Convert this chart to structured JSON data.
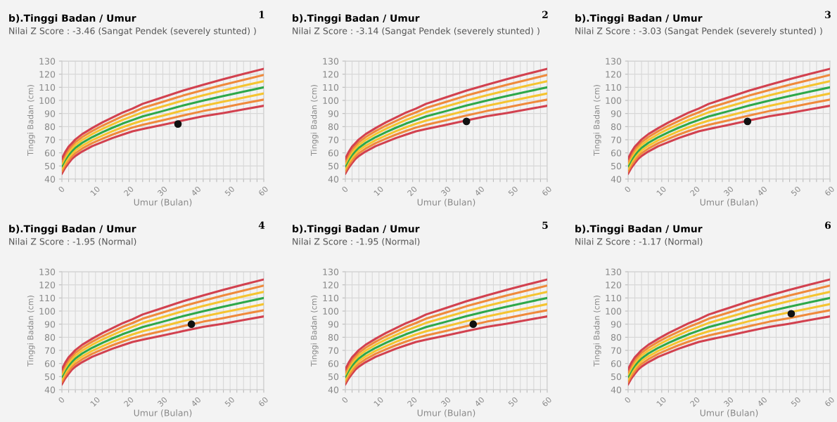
{
  "chart_data": [
    {
      "type": "line",
      "title": "b).Tinggi Badan / Umur",
      "subtitle": "Nilai Z Score : -3.46 (Sangat Pendek (severely stunted) )",
      "xlabel": "Umur (Bulan)",
      "ylabel": "Tinggi Badan (cm)",
      "annotations": [
        "1"
      ],
      "x": [
        0,
        1,
        2,
        3,
        4,
        6,
        9,
        12,
        15,
        18,
        21,
        24,
        30,
        36,
        42,
        48,
        54,
        60
      ],
      "series": [
        {
          "color": "#d2414f",
          "values": [
            44.2,
            48.7,
            52.1,
            55.4,
            57.6,
            61.0,
            65.1,
            68.2,
            71.3,
            73.9,
            76.4,
            78.2,
            81.4,
            84.7,
            87.9,
            90.4,
            93.2,
            95.9
          ]
        },
        {
          "color": "#ef8a3c",
          "values": [
            46.1,
            50.7,
            54.2,
            57.4,
            59.7,
            63.2,
            67.4,
            70.7,
            73.9,
            76.7,
            79.3,
            81.4,
            84.9,
            88.5,
            91.9,
            94.7,
            97.7,
            100.6
          ]
        },
        {
          "color": "#f5c431",
          "values": [
            48.0,
            52.7,
            56.3,
            59.4,
            61.8,
            65.4,
            69.7,
            73.2,
            76.5,
            79.5,
            82.2,
            84.6,
            88.4,
            92.3,
            95.9,
            99.0,
            102.2,
            105.3
          ]
        },
        {
          "color": "#2ea84a",
          "values": [
            49.9,
            54.7,
            58.4,
            61.4,
            63.9,
            67.6,
            72.0,
            75.7,
            79.1,
            82.3,
            85.1,
            87.8,
            91.9,
            96.1,
            99.9,
            103.3,
            106.7,
            110.0
          ]
        },
        {
          "color": "#f5c431",
          "values": [
            51.8,
            56.7,
            60.5,
            63.4,
            66.0,
            69.8,
            74.3,
            78.2,
            81.7,
            85.1,
            88.0,
            91.0,
            95.4,
            99.9,
            103.9,
            107.6,
            111.2,
            114.7
          ]
        },
        {
          "color": "#ef8a3c",
          "values": [
            53.7,
            58.7,
            62.6,
            65.4,
            68.1,
            72.0,
            76.6,
            80.7,
            84.3,
            87.9,
            90.9,
            94.2,
            98.9,
            103.7,
            107.9,
            111.9,
            115.7,
            119.4
          ]
        },
        {
          "color": "#d2414f",
          "values": [
            55.6,
            60.7,
            64.7,
            67.4,
            70.2,
            74.2,
            78.9,
            83.2,
            86.9,
            90.7,
            93.8,
            97.4,
            102.4,
            107.5,
            111.9,
            116.2,
            120.2,
            124.1
          ]
        },
        {
          "type": "scatter",
          "marker": "circle",
          "color": "#111111",
          "x": [
            34.5
          ],
          "values": [
            82
          ]
        }
      ],
      "xlim": [
        0,
        60
      ],
      "ylim": [
        40,
        130
      ],
      "yticks": [
        40,
        50,
        60,
        70,
        80,
        90,
        100,
        110,
        120,
        130
      ],
      "xticks": [
        0,
        {
          "value": 2,
          "label": null
        },
        {
          "value": 4,
          "label": null
        },
        {
          "value": 6,
          "label": null
        },
        {
          "value": 8,
          "label": null
        },
        10,
        {
          "value": 12,
          "label": null
        },
        {
          "value": 14,
          "label": null
        },
        {
          "value": 16,
          "label": null
        },
        {
          "value": 18,
          "label": null
        },
        20,
        {
          "value": 22,
          "label": null
        },
        {
          "value": 24,
          "label": null
        },
        {
          "value": 26,
          "label": null
        },
        {
          "value": 28,
          "label": null
        },
        30,
        {
          "value": 32,
          "label": null
        },
        {
          "value": 34,
          "label": null
        },
        {
          "value": 36,
          "label": null
        },
        {
          "value": 38,
          "label": null
        },
        40,
        {
          "value": 42,
          "label": null
        },
        {
          "value": 44,
          "label": null
        },
        {
          "value": 46,
          "label": null
        },
        {
          "value": 48,
          "label": null
        },
        50,
        {
          "value": 52,
          "label": null
        },
        {
          "value": 54,
          "label": null
        },
        {
          "value": 56,
          "label": null
        },
        {
          "value": 58,
          "label": null
        },
        60
      ],
      "grid": true,
      "marker": "none",
      "line_style": "solid"
    },
    {
      "type": "line",
      "title": "b).Tinggi Badan / Umur",
      "subtitle": "Nilai Z Score : -3.14 (Sangat Pendek (severely stunted) )",
      "xlabel": "Umur (Bulan)",
      "ylabel": "Tinggi Badan (cm)",
      "annotations": [
        "2"
      ],
      "x": [
        0,
        1,
        2,
        3,
        4,
        6,
        9,
        12,
        15,
        18,
        21,
        24,
        30,
        36,
        42,
        48,
        54,
        60
      ],
      "series": [
        {
          "color": "#d2414f",
          "values": [
            44.2,
            48.7,
            52.1,
            55.4,
            57.6,
            61.0,
            65.1,
            68.2,
            71.3,
            73.9,
            76.4,
            78.2,
            81.4,
            84.7,
            87.9,
            90.4,
            93.2,
            95.9
          ]
        },
        {
          "color": "#ef8a3c",
          "values": [
            46.1,
            50.7,
            54.2,
            57.4,
            59.7,
            63.2,
            67.4,
            70.7,
            73.9,
            76.7,
            79.3,
            81.4,
            84.9,
            88.5,
            91.9,
            94.7,
            97.7,
            100.6
          ]
        },
        {
          "color": "#f5c431",
          "values": [
            48.0,
            52.7,
            56.3,
            59.4,
            61.8,
            65.4,
            69.7,
            73.2,
            76.5,
            79.5,
            82.2,
            84.6,
            88.4,
            92.3,
            95.9,
            99.0,
            102.2,
            105.3
          ]
        },
        {
          "color": "#2ea84a",
          "values": [
            49.9,
            54.7,
            58.4,
            61.4,
            63.9,
            67.6,
            72.0,
            75.7,
            79.1,
            82.3,
            85.1,
            87.8,
            91.9,
            96.1,
            99.9,
            103.3,
            106.7,
            110.0
          ]
        },
        {
          "color": "#f5c431",
          "values": [
            51.8,
            56.7,
            60.5,
            63.4,
            66.0,
            69.8,
            74.3,
            78.2,
            81.7,
            85.1,
            88.0,
            91.0,
            95.4,
            99.9,
            103.9,
            107.6,
            111.2,
            114.7
          ]
        },
        {
          "color": "#ef8a3c",
          "values": [
            53.7,
            58.7,
            62.6,
            65.4,
            68.1,
            72.0,
            76.6,
            80.7,
            84.3,
            87.9,
            90.9,
            94.2,
            98.9,
            103.7,
            107.9,
            111.9,
            115.7,
            119.4
          ]
        },
        {
          "color": "#d2414f",
          "values": [
            55.6,
            60.7,
            64.7,
            67.4,
            70.2,
            74.2,
            78.9,
            83.2,
            86.9,
            90.7,
            93.8,
            97.4,
            102.4,
            107.5,
            111.9,
            116.2,
            120.2,
            124.1
          ]
        },
        {
          "type": "scatter",
          "marker": "circle",
          "color": "#111111",
          "x": [
            36
          ],
          "values": [
            84
          ]
        }
      ],
      "xlim": [
        0,
        60
      ],
      "ylim": [
        40,
        130
      ],
      "yticks": [
        40,
        50,
        60,
        70,
        80,
        90,
        100,
        110,
        120,
        130
      ],
      "xticks": [
        0,
        {
          "value": 2,
          "label": null
        },
        {
          "value": 4,
          "label": null
        },
        {
          "value": 6,
          "label": null
        },
        {
          "value": 8,
          "label": null
        },
        10,
        {
          "value": 12,
          "label": null
        },
        {
          "value": 14,
          "label": null
        },
        {
          "value": 16,
          "label": null
        },
        {
          "value": 18,
          "label": null
        },
        20,
        {
          "value": 22,
          "label": null
        },
        {
          "value": 24,
          "label": null
        },
        {
          "value": 26,
          "label": null
        },
        {
          "value": 28,
          "label": null
        },
        30,
        {
          "value": 32,
          "label": null
        },
        {
          "value": 34,
          "label": null
        },
        {
          "value": 36,
          "label": null
        },
        {
          "value": 38,
          "label": null
        },
        40,
        {
          "value": 42,
          "label": null
        },
        {
          "value": 44,
          "label": null
        },
        {
          "value": 46,
          "label": null
        },
        {
          "value": 48,
          "label": null
        },
        50,
        {
          "value": 52,
          "label": null
        },
        {
          "value": 54,
          "label": null
        },
        {
          "value": 56,
          "label": null
        },
        {
          "value": 58,
          "label": null
        },
        60
      ],
      "grid": true,
      "marker": "none",
      "line_style": "solid"
    },
    {
      "type": "line",
      "title": "b).Tinggi Badan / Umur",
      "subtitle": "Nilai Z Score : -3.03 (Sangat Pendek (severely stunted) )",
      "xlabel": "Umur (Bulan)",
      "ylabel": "Tinggi Badan (cm)",
      "annotations": [
        "3"
      ],
      "x": [
        0,
        1,
        2,
        3,
        4,
        6,
        9,
        12,
        15,
        18,
        21,
        24,
        30,
        36,
        42,
        48,
        54,
        60
      ],
      "series": [
        {
          "color": "#d2414f",
          "values": [
            44.2,
            48.7,
            52.1,
            55.4,
            57.6,
            61.0,
            65.1,
            68.2,
            71.3,
            73.9,
            76.4,
            78.2,
            81.4,
            84.7,
            87.9,
            90.4,
            93.2,
            95.9
          ]
        },
        {
          "color": "#ef8a3c",
          "values": [
            46.1,
            50.7,
            54.2,
            57.4,
            59.7,
            63.2,
            67.4,
            70.7,
            73.9,
            76.7,
            79.3,
            81.4,
            84.9,
            88.5,
            91.9,
            94.7,
            97.7,
            100.6
          ]
        },
        {
          "color": "#f5c431",
          "values": [
            48.0,
            52.7,
            56.3,
            59.4,
            61.8,
            65.4,
            69.7,
            73.2,
            76.5,
            79.5,
            82.2,
            84.6,
            88.4,
            92.3,
            95.9,
            99.0,
            102.2,
            105.3
          ]
        },
        {
          "color": "#2ea84a",
          "values": [
            49.9,
            54.7,
            58.4,
            61.4,
            63.9,
            67.6,
            72.0,
            75.7,
            79.1,
            82.3,
            85.1,
            87.8,
            91.9,
            96.1,
            99.9,
            103.3,
            106.7,
            110.0
          ]
        },
        {
          "color": "#f5c431",
          "values": [
            51.8,
            56.7,
            60.5,
            63.4,
            66.0,
            69.8,
            74.3,
            78.2,
            81.7,
            85.1,
            88.0,
            91.0,
            95.4,
            99.9,
            103.9,
            107.6,
            111.2,
            114.7
          ]
        },
        {
          "color": "#ef8a3c",
          "values": [
            53.7,
            58.7,
            62.6,
            65.4,
            68.1,
            72.0,
            76.6,
            80.7,
            84.3,
            87.9,
            90.9,
            94.2,
            98.9,
            103.7,
            107.9,
            111.9,
            115.7,
            119.4
          ]
        },
        {
          "color": "#d2414f",
          "values": [
            55.6,
            60.7,
            64.7,
            67.4,
            70.2,
            74.2,
            78.9,
            83.2,
            86.9,
            90.7,
            93.8,
            97.4,
            102.4,
            107.5,
            111.9,
            116.2,
            120.2,
            124.1
          ]
        },
        {
          "type": "scatter",
          "marker": "circle",
          "color": "#111111",
          "x": [
            35.5
          ],
          "values": [
            84
          ]
        }
      ],
      "xlim": [
        0,
        60
      ],
      "ylim": [
        40,
        130
      ],
      "yticks": [
        40,
        50,
        60,
        70,
        80,
        90,
        100,
        110,
        120,
        130
      ],
      "xticks": [
        0,
        {
          "value": 2,
          "label": null
        },
        {
          "value": 4,
          "label": null
        },
        {
          "value": 6,
          "label": null
        },
        {
          "value": 8,
          "label": null
        },
        10,
        {
          "value": 12,
          "label": null
        },
        {
          "value": 14,
          "label": null
        },
        {
          "value": 16,
          "label": null
        },
        {
          "value": 18,
          "label": null
        },
        20,
        {
          "value": 22,
          "label": null
        },
        {
          "value": 24,
          "label": null
        },
        {
          "value": 26,
          "label": null
        },
        {
          "value": 28,
          "label": null
        },
        30,
        {
          "value": 32,
          "label": null
        },
        {
          "value": 34,
          "label": null
        },
        {
          "value": 36,
          "label": null
        },
        {
          "value": 38,
          "label": null
        },
        40,
        {
          "value": 42,
          "label": null
        },
        {
          "value": 44,
          "label": null
        },
        {
          "value": 46,
          "label": null
        },
        {
          "value": 48,
          "label": null
        },
        50,
        {
          "value": 52,
          "label": null
        },
        {
          "value": 54,
          "label": null
        },
        {
          "value": 56,
          "label": null
        },
        {
          "value": 58,
          "label": null
        },
        60
      ],
      "grid": true,
      "marker": "none",
      "line_style": "solid"
    },
    {
      "type": "line",
      "title": "b).Tinggi Badan / Umur",
      "subtitle": "Nilai Z Score : -1.95 (Normal)",
      "xlabel": "Umur (Bulan)",
      "ylabel": "Tinggi Badan (cm)",
      "annotations": [
        "4"
      ],
      "x": [
        0,
        1,
        2,
        3,
        4,
        6,
        9,
        12,
        15,
        18,
        21,
        24,
        30,
        36,
        42,
        48,
        54,
        60
      ],
      "series": [
        {
          "color": "#d2414f",
          "values": [
            44.2,
            48.7,
            52.1,
            55.4,
            57.6,
            61.0,
            65.1,
            68.2,
            71.3,
            73.9,
            76.4,
            78.2,
            81.4,
            84.7,
            87.9,
            90.4,
            93.2,
            95.9
          ]
        },
        {
          "color": "#ef8a3c",
          "values": [
            46.1,
            50.7,
            54.2,
            57.4,
            59.7,
            63.2,
            67.4,
            70.7,
            73.9,
            76.7,
            79.3,
            81.4,
            84.9,
            88.5,
            91.9,
            94.7,
            97.7,
            100.6
          ]
        },
        {
          "color": "#f5c431",
          "values": [
            48.0,
            52.7,
            56.3,
            59.4,
            61.8,
            65.4,
            69.7,
            73.2,
            76.5,
            79.5,
            82.2,
            84.6,
            88.4,
            92.3,
            95.9,
            99.0,
            102.2,
            105.3
          ]
        },
        {
          "color": "#2ea84a",
          "values": [
            49.9,
            54.7,
            58.4,
            61.4,
            63.9,
            67.6,
            72.0,
            75.7,
            79.1,
            82.3,
            85.1,
            87.8,
            91.9,
            96.1,
            99.9,
            103.3,
            106.7,
            110.0
          ]
        },
        {
          "color": "#f5c431",
          "values": [
            51.8,
            56.7,
            60.5,
            63.4,
            66.0,
            69.8,
            74.3,
            78.2,
            81.7,
            85.1,
            88.0,
            91.0,
            95.4,
            99.9,
            103.9,
            107.6,
            111.2,
            114.7
          ]
        },
        {
          "color": "#ef8a3c",
          "values": [
            53.7,
            58.7,
            62.6,
            65.4,
            68.1,
            72.0,
            76.6,
            80.7,
            84.3,
            87.9,
            90.9,
            94.2,
            98.9,
            103.7,
            107.9,
            111.9,
            115.7,
            119.4
          ]
        },
        {
          "color": "#d2414f",
          "values": [
            55.6,
            60.7,
            64.7,
            67.4,
            70.2,
            74.2,
            78.9,
            83.2,
            86.9,
            90.7,
            93.8,
            97.4,
            102.4,
            107.5,
            111.9,
            116.2,
            120.2,
            124.1
          ]
        },
        {
          "type": "scatter",
          "marker": "circle",
          "color": "#111111",
          "x": [
            38.5
          ],
          "values": [
            90
          ]
        }
      ],
      "xlim": [
        0,
        60
      ],
      "ylim": [
        40,
        130
      ],
      "yticks": [
        40,
        50,
        60,
        70,
        80,
        90,
        100,
        110,
        120,
        130
      ],
      "xticks": [
        0,
        {
          "value": 2,
          "label": null
        },
        {
          "value": 4,
          "label": null
        },
        {
          "value": 6,
          "label": null
        },
        {
          "value": 8,
          "label": null
        },
        10,
        {
          "value": 12,
          "label": null
        },
        {
          "value": 14,
          "label": null
        },
        {
          "value": 16,
          "label": null
        },
        {
          "value": 18,
          "label": null
        },
        20,
        {
          "value": 22,
          "label": null
        },
        {
          "value": 24,
          "label": null
        },
        {
          "value": 26,
          "label": null
        },
        {
          "value": 28,
          "label": null
        },
        30,
        {
          "value": 32,
          "label": null
        },
        {
          "value": 34,
          "label": null
        },
        {
          "value": 36,
          "label": null
        },
        {
          "value": 38,
          "label": null
        },
        40,
        {
          "value": 42,
          "label": null
        },
        {
          "value": 44,
          "label": null
        },
        {
          "value": 46,
          "label": null
        },
        {
          "value": 48,
          "label": null
        },
        50,
        {
          "value": 52,
          "label": null
        },
        {
          "value": 54,
          "label": null
        },
        {
          "value": 56,
          "label": null
        },
        {
          "value": 58,
          "label": null
        },
        60
      ],
      "grid": true,
      "marker": "none",
      "line_style": "solid"
    },
    {
      "type": "line",
      "title": "b).Tinggi Badan / Umur",
      "subtitle": "Nilai Z Score : -1.95 (Normal)",
      "xlabel": "Umur (Bulan)",
      "ylabel": "Tinggi Badan (cm)",
      "annotations": [
        "5"
      ],
      "x": [
        0,
        1,
        2,
        3,
        4,
        6,
        9,
        12,
        15,
        18,
        21,
        24,
        30,
        36,
        42,
        48,
        54,
        60
      ],
      "series": [
        {
          "color": "#d2414f",
          "values": [
            44.2,
            48.7,
            52.1,
            55.4,
            57.6,
            61.0,
            65.1,
            68.2,
            71.3,
            73.9,
            76.4,
            78.2,
            81.4,
            84.7,
            87.9,
            90.4,
            93.2,
            95.9
          ]
        },
        {
          "color": "#ef8a3c",
          "values": [
            46.1,
            50.7,
            54.2,
            57.4,
            59.7,
            63.2,
            67.4,
            70.7,
            73.9,
            76.7,
            79.3,
            81.4,
            84.9,
            88.5,
            91.9,
            94.7,
            97.7,
            100.6
          ]
        },
        {
          "color": "#f5c431",
          "values": [
            48.0,
            52.7,
            56.3,
            59.4,
            61.8,
            65.4,
            69.7,
            73.2,
            76.5,
            79.5,
            82.2,
            84.6,
            88.4,
            92.3,
            95.9,
            99.0,
            102.2,
            105.3
          ]
        },
        {
          "color": "#2ea84a",
          "values": [
            49.9,
            54.7,
            58.4,
            61.4,
            63.9,
            67.6,
            72.0,
            75.7,
            79.1,
            82.3,
            85.1,
            87.8,
            91.9,
            96.1,
            99.9,
            103.3,
            106.7,
            110.0
          ]
        },
        {
          "color": "#f5c431",
          "values": [
            51.8,
            56.7,
            60.5,
            63.4,
            66.0,
            69.8,
            74.3,
            78.2,
            81.7,
            85.1,
            88.0,
            91.0,
            95.4,
            99.9,
            103.9,
            107.6,
            111.2,
            114.7
          ]
        },
        {
          "color": "#ef8a3c",
          "values": [
            53.7,
            58.7,
            62.6,
            65.4,
            68.1,
            72.0,
            76.6,
            80.7,
            84.3,
            87.9,
            90.9,
            94.2,
            98.9,
            103.7,
            107.9,
            111.9,
            115.7,
            119.4
          ]
        },
        {
          "color": "#d2414f",
          "values": [
            55.6,
            60.7,
            64.7,
            67.4,
            70.2,
            74.2,
            78.9,
            83.2,
            86.9,
            90.7,
            93.8,
            97.4,
            102.4,
            107.5,
            111.9,
            116.2,
            120.2,
            124.1
          ]
        },
        {
          "type": "scatter",
          "marker": "circle",
          "color": "#111111",
          "x": [
            38
          ],
          "values": [
            90
          ]
        }
      ],
      "xlim": [
        0,
        60
      ],
      "ylim": [
        40,
        130
      ],
      "yticks": [
        40,
        50,
        60,
        70,
        80,
        90,
        100,
        110,
        120,
        130
      ],
      "xticks": [
        0,
        {
          "value": 2,
          "label": null
        },
        {
          "value": 4,
          "label": null
        },
        {
          "value": 6,
          "label": null
        },
        {
          "value": 8,
          "label": null
        },
        10,
        {
          "value": 12,
          "label": null
        },
        {
          "value": 14,
          "label": null
        },
        {
          "value": 16,
          "label": null
        },
        {
          "value": 18,
          "label": null
        },
        20,
        {
          "value": 22,
          "label": null
        },
        {
          "value": 24,
          "label": null
        },
        {
          "value": 26,
          "label": null
        },
        {
          "value": 28,
          "label": null
        },
        30,
        {
          "value": 32,
          "label": null
        },
        {
          "value": 34,
          "label": null
        },
        {
          "value": 36,
          "label": null
        },
        {
          "value": 38,
          "label": null
        },
        40,
        {
          "value": 42,
          "label": null
        },
        {
          "value": 44,
          "label": null
        },
        {
          "value": 46,
          "label": null
        },
        {
          "value": 48,
          "label": null
        },
        50,
        {
          "value": 52,
          "label": null
        },
        {
          "value": 54,
          "label": null
        },
        {
          "value": 56,
          "label": null
        },
        {
          "value": 58,
          "label": null
        },
        60
      ],
      "grid": true,
      "marker": "none",
      "line_style": "solid"
    },
    {
      "type": "line",
      "title": "b).Tinggi Badan / Umur",
      "subtitle": "Nilai Z Score : -1.17 (Normal)",
      "xlabel": "Umur (Bulan)",
      "ylabel": "Tinggi Badan (cm)",
      "annotations": [
        "6"
      ],
      "x": [
        0,
        1,
        2,
        3,
        4,
        6,
        9,
        12,
        15,
        18,
        21,
        24,
        30,
        36,
        42,
        48,
        54,
        60
      ],
      "series": [
        {
          "color": "#d2414f",
          "values": [
            44.2,
            48.7,
            52.1,
            55.4,
            57.6,
            61.0,
            65.1,
            68.2,
            71.3,
            73.9,
            76.4,
            78.2,
            81.4,
            84.7,
            87.9,
            90.4,
            93.2,
            95.9
          ]
        },
        {
          "color": "#ef8a3c",
          "values": [
            46.1,
            50.7,
            54.2,
            57.4,
            59.7,
            63.2,
            67.4,
            70.7,
            73.9,
            76.7,
            79.3,
            81.4,
            84.9,
            88.5,
            91.9,
            94.7,
            97.7,
            100.6
          ]
        },
        {
          "color": "#f5c431",
          "values": [
            48.0,
            52.7,
            56.3,
            59.4,
            61.8,
            65.4,
            69.7,
            73.2,
            76.5,
            79.5,
            82.2,
            84.6,
            88.4,
            92.3,
            95.9,
            99.0,
            102.2,
            105.3
          ]
        },
        {
          "color": "#2ea84a",
          "values": [
            49.9,
            54.7,
            58.4,
            61.4,
            63.9,
            67.6,
            72.0,
            75.7,
            79.1,
            82.3,
            85.1,
            87.8,
            91.9,
            96.1,
            99.9,
            103.3,
            106.7,
            110.0
          ]
        },
        {
          "color": "#f5c431",
          "values": [
            51.8,
            56.7,
            60.5,
            63.4,
            66.0,
            69.8,
            74.3,
            78.2,
            81.7,
            85.1,
            88.0,
            91.0,
            95.4,
            99.9,
            103.9,
            107.6,
            111.2,
            114.7
          ]
        },
        {
          "color": "#ef8a3c",
          "values": [
            53.7,
            58.7,
            62.6,
            65.4,
            68.1,
            72.0,
            76.6,
            80.7,
            84.3,
            87.9,
            90.9,
            94.2,
            98.9,
            103.7,
            107.9,
            111.9,
            115.7,
            119.4
          ]
        },
        {
          "color": "#d2414f",
          "values": [
            55.6,
            60.7,
            64.7,
            67.4,
            70.2,
            74.2,
            78.9,
            83.2,
            86.9,
            90.7,
            93.8,
            97.4,
            102.4,
            107.5,
            111.9,
            116.2,
            120.2,
            124.1
          ]
        },
        {
          "type": "scatter",
          "marker": "circle",
          "color": "#111111",
          "x": [
            48.5
          ],
          "values": [
            98
          ]
        }
      ],
      "xlim": [
        0,
        60
      ],
      "ylim": [
        40,
        130
      ],
      "yticks": [
        40,
        50,
        60,
        70,
        80,
        90,
        100,
        110,
        120,
        130
      ],
      "xticks": [
        0,
        {
          "value": 2,
          "label": null
        },
        {
          "value": 4,
          "label": null
        },
        {
          "value": 6,
          "label": null
        },
        {
          "value": 8,
          "label": null
        },
        10,
        {
          "value": 12,
          "label": null
        },
        {
          "value": 14,
          "label": null
        },
        {
          "value": 16,
          "label": null
        },
        {
          "value": 18,
          "label": null
        },
        20,
        {
          "value": 22,
          "label": null
        },
        {
          "value": 24,
          "label": null
        },
        {
          "value": 26,
          "label": null
        },
        {
          "value": 28,
          "label": null
        },
        30,
        {
          "value": 32,
          "label": null
        },
        {
          "value": 34,
          "label": null
        },
        {
          "value": 36,
          "label": null
        },
        {
          "value": 38,
          "label": null
        },
        40,
        {
          "value": 42,
          "label": null
        },
        {
          "value": 44,
          "label": null
        },
        {
          "value": 46,
          "label": null
        },
        {
          "value": 48,
          "label": null
        },
        50,
        {
          "value": 52,
          "label": null
        },
        {
          "value": 54,
          "label": null
        },
        {
          "value": 56,
          "label": null
        },
        {
          "value": 58,
          "label": null
        },
        60
      ],
      "grid": true,
      "marker": "none",
      "line_style": "solid"
    }
  ]
}
